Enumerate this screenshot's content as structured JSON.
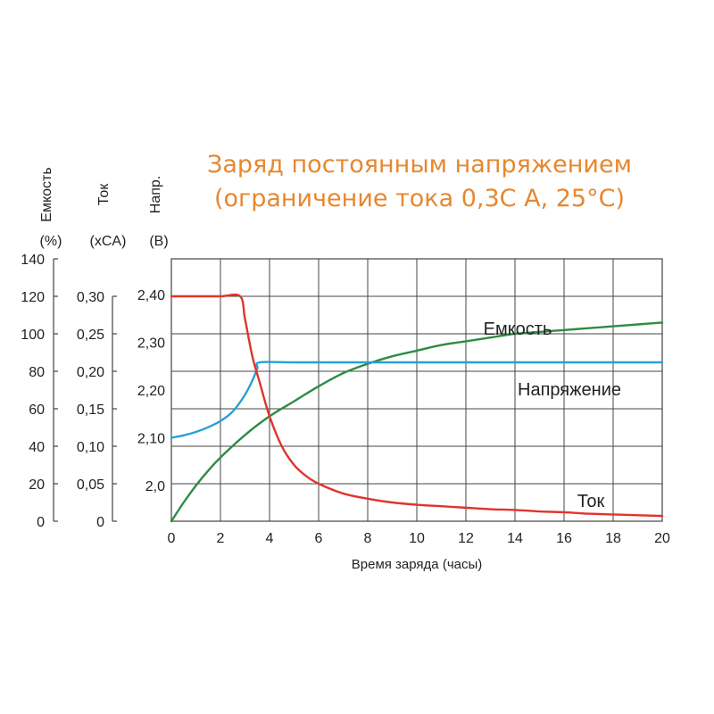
{
  "chart_data": {
    "type": "line",
    "title": "Заряд постоянным напряжением",
    "subtitle": "(ограничение тока 0,3С А, 25°C)",
    "xlabel": "Время заряда (часы)",
    "x_ticks": [
      "0",
      "2",
      "4",
      "6",
      "8",
      "10",
      "12",
      "14",
      "16",
      "18",
      "20"
    ],
    "xlim": [
      0,
      20
    ],
    "grid": true,
    "legend": "inline labels next to curves",
    "axes": [
      {
        "id": "capacity",
        "title": "Емкость",
        "unit": "(%)",
        "ticks": [
          "140",
          "120",
          "100",
          "80",
          "60",
          "40",
          "20",
          "0"
        ],
        "ylim": [
          0,
          140
        ]
      },
      {
        "id": "current",
        "title": "Ток",
        "unit": "(xCA)",
        "ticks": [
          "0,30",
          "0,25",
          "0,20",
          "0,15",
          "0,10",
          "0,05",
          "0"
        ],
        "ylim": [
          0,
          0.35
        ]
      },
      {
        "id": "voltage",
        "title": "Напр.",
        "unit": "(В)",
        "ticks": [
          "2,40",
          "2,30",
          "2,20",
          "2,10",
          "2,0"
        ],
        "ylim": [
          1.925,
          2.475
        ]
      }
    ],
    "series": [
      {
        "name": "Емкость",
        "axis": "capacity",
        "color": "#2e8b45",
        "x": [
          0,
          0.5,
          1,
          1.5,
          2,
          3,
          4,
          5,
          6,
          7,
          8,
          9,
          10,
          11,
          12,
          13,
          14,
          15,
          16,
          17,
          18,
          19,
          20
        ],
        "values": [
          0,
          10,
          19,
          27,
          34,
          46,
          56,
          64,
          72,
          79,
          84,
          88,
          91,
          94,
          96,
          98,
          100,
          101,
          102,
          103,
          104,
          105,
          106
        ]
      },
      {
        "name": "Напряжение",
        "axis": "voltage",
        "color": "#2a9fd6",
        "x": [
          0,
          0.5,
          1,
          1.5,
          2,
          2.5,
          3,
          3.3,
          3.5,
          3.6,
          5,
          8,
          12,
          16,
          20
        ],
        "values": [
          2.1,
          2.105,
          2.112,
          2.122,
          2.135,
          2.155,
          2.19,
          2.22,
          2.245,
          2.258,
          2.258,
          2.258,
          2.258,
          2.258,
          2.258
        ]
      },
      {
        "name": "Ток",
        "axis": "current",
        "color": "#e0342c",
        "x": [
          0,
          1,
          2,
          2.8,
          3.0,
          3.3,
          3.6,
          4,
          4.5,
          5,
          5.5,
          6,
          7,
          8,
          9,
          10,
          11,
          12,
          13,
          14,
          15,
          16,
          17,
          18,
          19,
          20
        ],
        "values": [
          0.3,
          0.3,
          0.3,
          0.3,
          0.27,
          0.22,
          0.185,
          0.14,
          0.1,
          0.075,
          0.06,
          0.05,
          0.037,
          0.03,
          0.025,
          0.022,
          0.02,
          0.018,
          0.016,
          0.015,
          0.013,
          0.012,
          0.01,
          0.009,
          0.008,
          0.007
        ]
      }
    ]
  }
}
